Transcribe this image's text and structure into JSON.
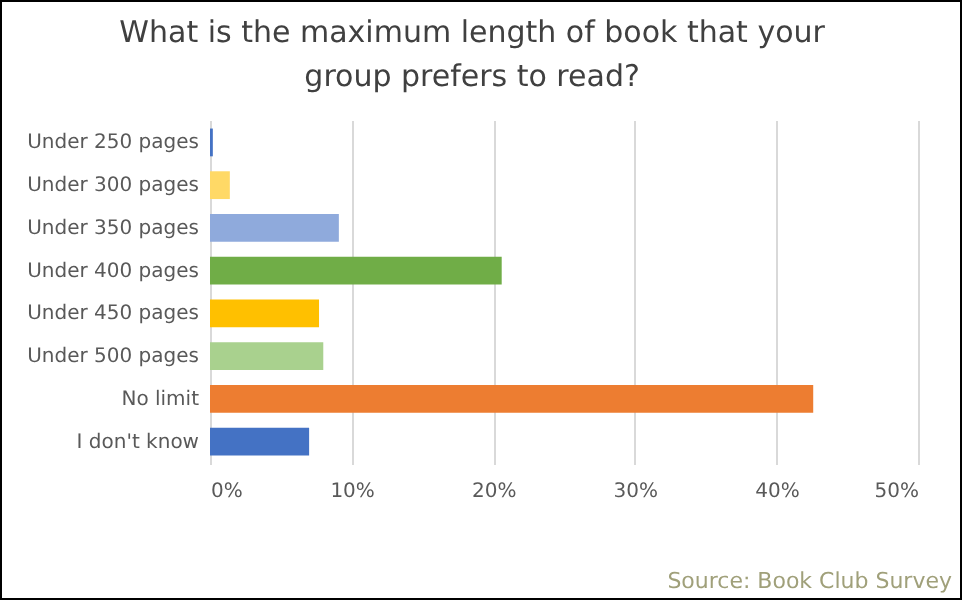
{
  "chart_data": {
    "type": "bar",
    "orientation": "horizontal",
    "title": "What is the maximum length of book that your group prefers to read?",
    "categories": [
      "Under 250 pages",
      "Under 300 pages",
      "Under 350 pages",
      "Under 400 pages",
      "Under 450 pages",
      "Under 500 pages",
      "No limit",
      "I don't know"
    ],
    "values": [
      0.2,
      1.4,
      9.1,
      20.6,
      7.7,
      8.0,
      42.6,
      7.0
    ],
    "colors": [
      "#4472c4",
      "#ffd966",
      "#8faadc",
      "#70ad47",
      "#ffc000",
      "#a9d18e",
      "#ed7d31",
      "#4472c4"
    ],
    "xlim": [
      0,
      50
    ],
    "xticks": [
      {
        "value": 0,
        "label": "0%"
      },
      {
        "value": 10,
        "label": "10%"
      },
      {
        "value": 20,
        "label": "20%"
      },
      {
        "value": 30,
        "label": "30%"
      },
      {
        "value": 40,
        "label": "40%"
      },
      {
        "value": 50,
        "label": "50%"
      }
    ],
    "grid": "x",
    "annotations": [
      "Source: Book Club Survey"
    ]
  }
}
